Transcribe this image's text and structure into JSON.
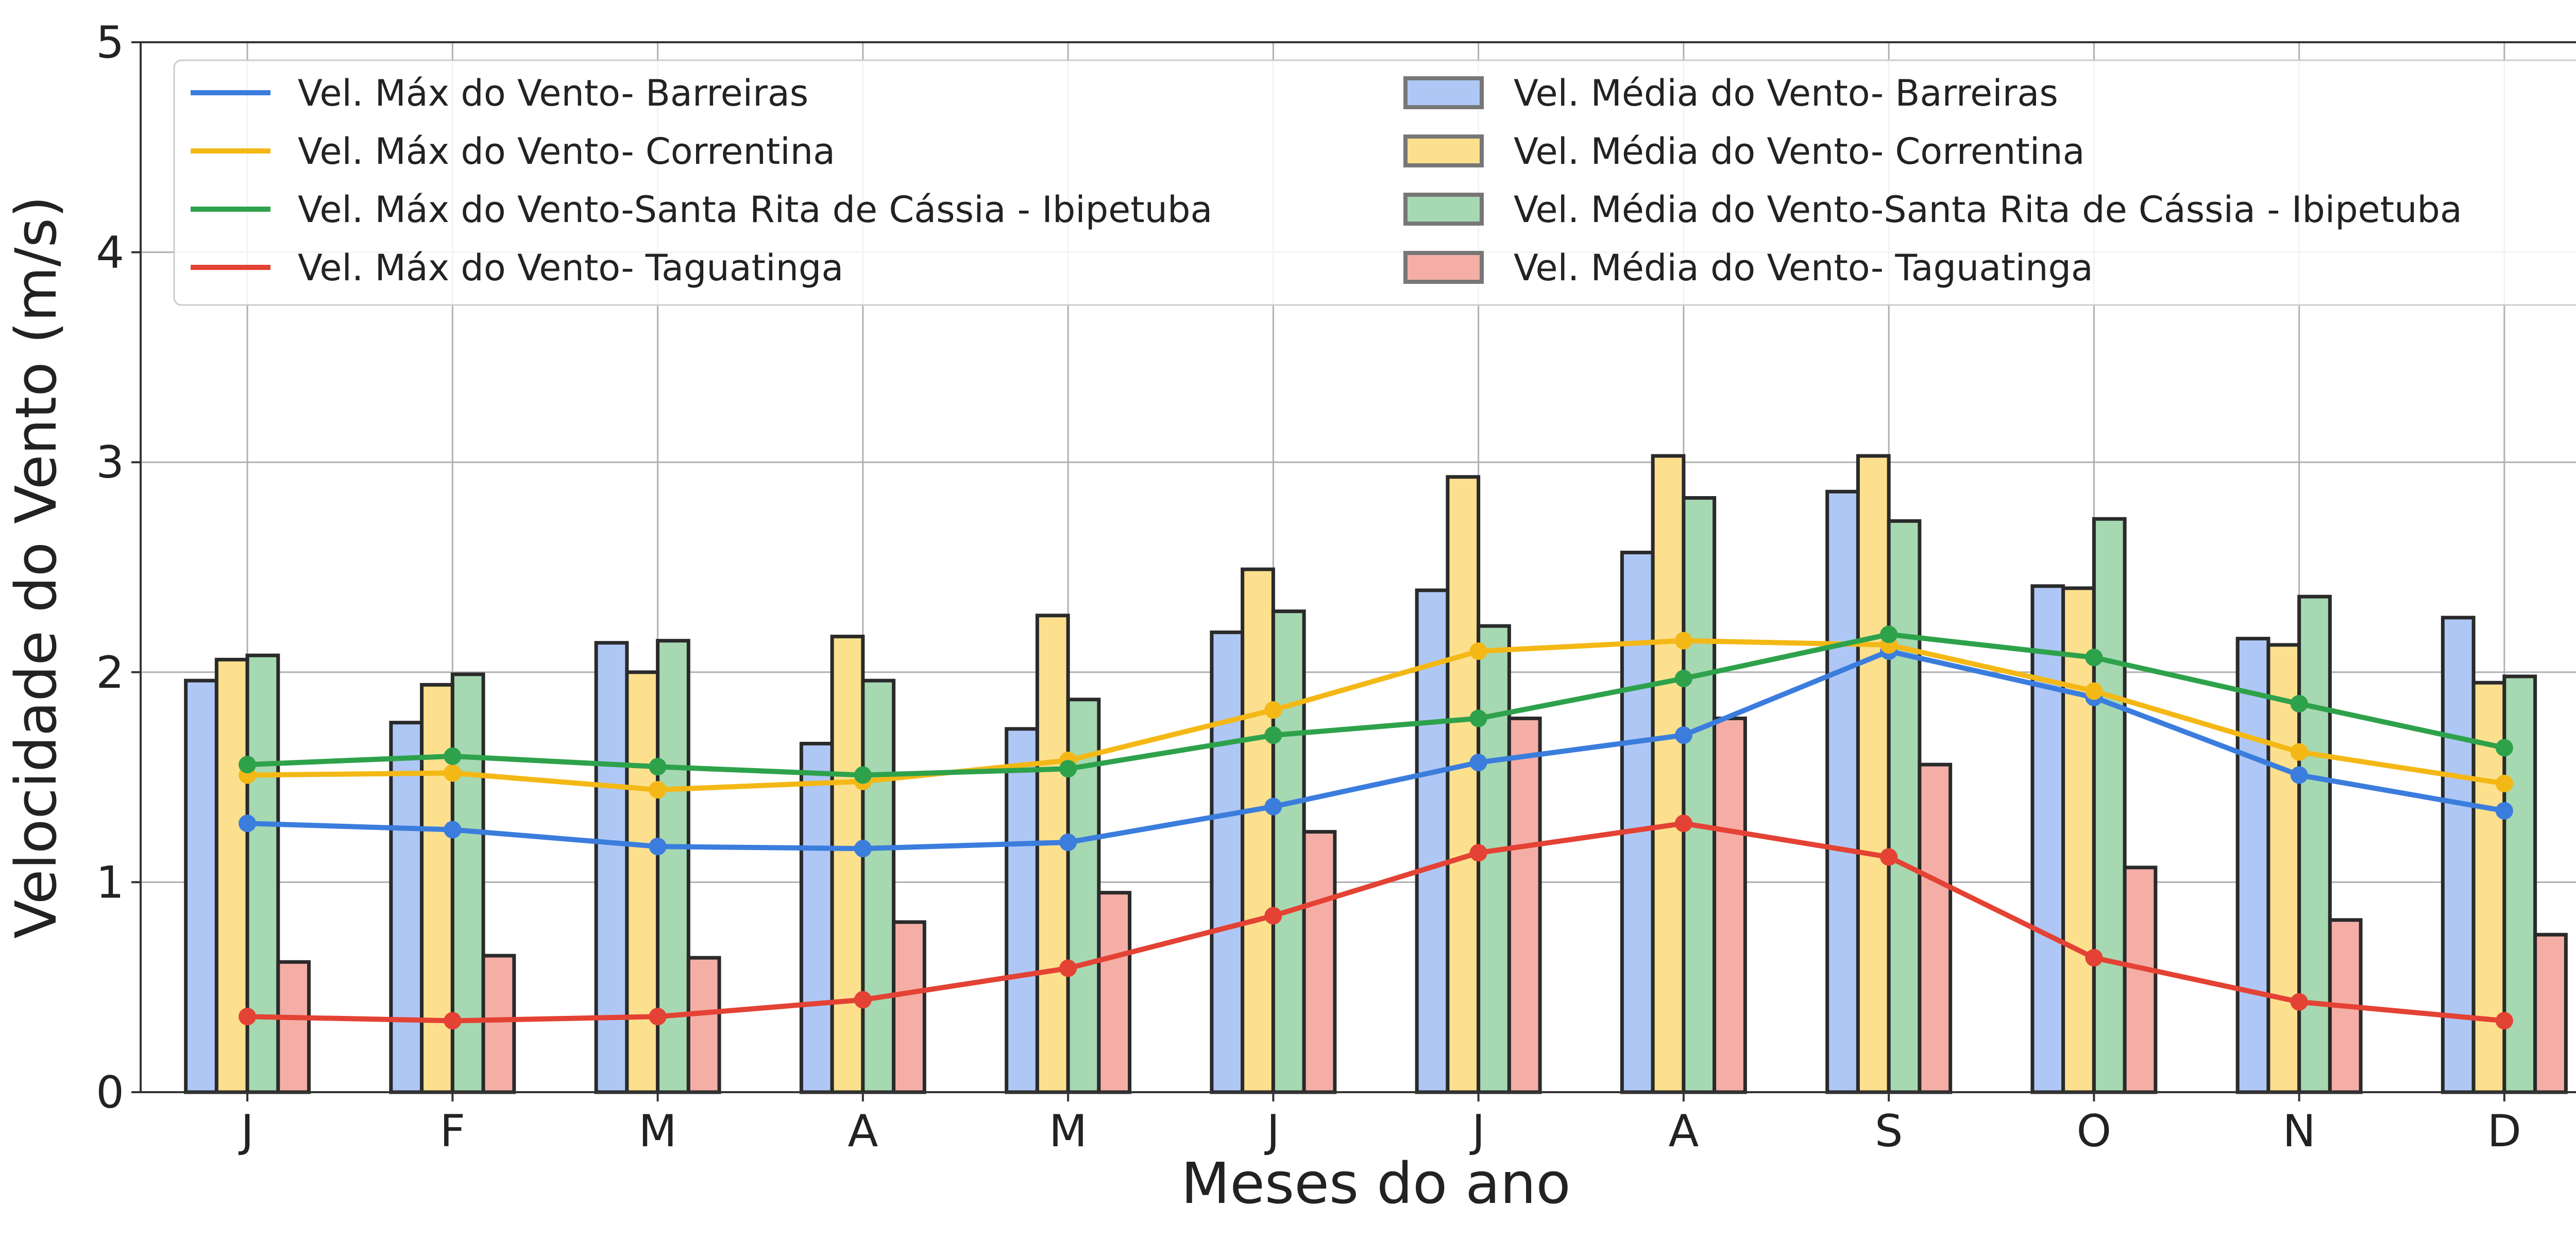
{
  "chart_data": {
    "type": "bar",
    "xlabel": "Meses do ano",
    "ylabel": "Velocidade do Vento (m/s)",
    "categories": [
      "J",
      "F",
      "M",
      "A",
      "M",
      "J",
      "J",
      "A",
      "S",
      "O",
      "N",
      "D"
    ],
    "ylim": [
      0,
      5
    ],
    "yticks": [
      0,
      1,
      2,
      3,
      4,
      5
    ],
    "grid": true,
    "legend_position": "top",
    "bar_series": [
      {
        "name": "Vel. Média do Vento- Barreiras",
        "color": "#aec7f5",
        "values": [
          1.96,
          1.76,
          2.14,
          1.66,
          1.73,
          2.19,
          2.39,
          2.57,
          2.86,
          2.41,
          2.16,
          2.26
        ]
      },
      {
        "name": "Vel. Média do Vento- Correntina",
        "color": "#fde08e",
        "values": [
          2.06,
          1.94,
          2.0,
          2.17,
          2.27,
          2.49,
          2.93,
          3.03,
          3.03,
          2.4,
          2.13,
          1.95
        ]
      },
      {
        "name": "Vel. Média do Vento-Santa  Rita  de Cássia - Ibipetuba",
        "color": "#a6d8b2",
        "values": [
          2.08,
          1.99,
          2.15,
          1.96,
          1.87,
          2.29,
          2.22,
          2.83,
          2.72,
          2.73,
          2.36,
          1.98
        ]
      },
      {
        "name": "Vel. Média do Vento- Taguatinga",
        "color": "#f4aea6",
        "values": [
          0.62,
          0.65,
          0.64,
          0.81,
          0.95,
          1.24,
          1.78,
          1.78,
          1.56,
          1.07,
          0.82,
          0.75
        ]
      }
    ],
    "line_series": [
      {
        "name": "Vel. Máx do Vento- Barreiras",
        "color": "#3b7ddd",
        "values": [
          1.28,
          1.25,
          1.17,
          1.16,
          1.19,
          1.36,
          1.57,
          1.7,
          2.1,
          1.88,
          1.51,
          1.34
        ]
      },
      {
        "name": "Vel. Máx do Vento- Correntina",
        "color": "#f4b816",
        "values": [
          1.51,
          1.52,
          1.44,
          1.48,
          1.58,
          1.82,
          2.1,
          2.15,
          2.13,
          1.91,
          1.62,
          1.47
        ]
      },
      {
        "name": "Vel. Máx do Vento-Santa  Rita  de Cássia - Ibipetuba",
        "color": "#2ea24b",
        "values": [
          1.56,
          1.6,
          1.55,
          1.51,
          1.54,
          1.7,
          1.78,
          1.97,
          2.18,
          2.07,
          1.85,
          1.64
        ]
      },
      {
        "name": "Vel. Máx do Vento- Taguatinga",
        "color": "#e34234",
        "values": [
          0.36,
          0.34,
          0.36,
          0.44,
          0.59,
          0.84,
          1.14,
          1.28,
          1.12,
          0.64,
          0.43,
          0.34
        ]
      }
    ]
  }
}
